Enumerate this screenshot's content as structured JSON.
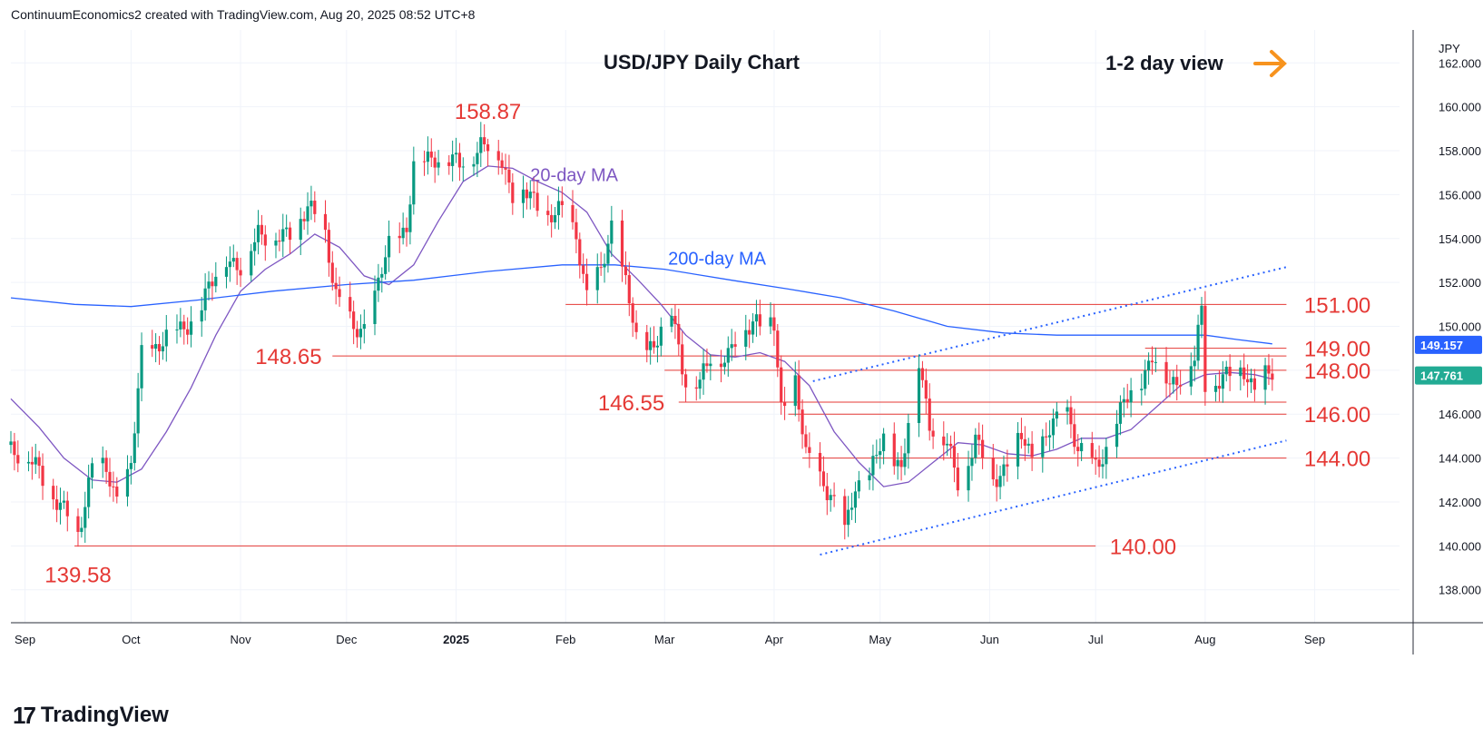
{
  "header": {
    "attribution": "ContinuumEconomics2 created with TradingView.com, Aug 20, 2025 08:52 UTC+8"
  },
  "footer": {
    "logo_mark": "17",
    "logo_text": "TradingView"
  },
  "chart_data": {
    "type": "candlestick",
    "title": "USD/JPY Daily Chart",
    "subtitle": "1-2 day view",
    "currency_label": "JPY",
    "ylim": [
      136.5,
      163.5
    ],
    "y_ticks": [
      "138.000",
      "140.000",
      "142.000",
      "144.000",
      "146.000",
      "148.000",
      "150.000",
      "152.000",
      "154.000",
      "156.000",
      "158.000",
      "160.000",
      "162.000"
    ],
    "x_ticks": [
      {
        "label": "Sep",
        "date": "2024-09-01"
      },
      {
        "label": "Oct",
        "date": "2024-10-01"
      },
      {
        "label": "Nov",
        "date": "2024-11-01"
      },
      {
        "label": "Dec",
        "date": "2024-12-01"
      },
      {
        "label": "2025",
        "date": "2025-01-01"
      },
      {
        "label": "Feb",
        "date": "2025-02-01"
      },
      {
        "label": "Mar",
        "date": "2025-03-01"
      },
      {
        "label": "Apr",
        "date": "2025-04-01"
      },
      {
        "label": "May",
        "date": "2025-05-01"
      },
      {
        "label": "Jun",
        "date": "2025-06-01"
      },
      {
        "label": "Jul",
        "date": "2025-07-01"
      },
      {
        "label": "Aug",
        "date": "2025-08-01"
      },
      {
        "label": "Sep",
        "date": "2025-09-01"
      }
    ],
    "x_range": [
      "2024-08-28",
      "2025-09-25"
    ],
    "price_badges": [
      {
        "label": "149.157",
        "value": 149.157,
        "color": "#2962ff"
      },
      {
        "label": "147.761",
        "value": 147.761,
        "color": "#22ab94"
      }
    ],
    "close_points": [
      [
        "2024-08-28",
        144.6
      ],
      [
        "2024-09-05",
        143.4
      ],
      [
        "2024-09-11",
        141.8
      ],
      [
        "2024-09-16",
        140.5
      ],
      [
        "2024-09-20",
        143.8
      ],
      [
        "2024-09-24",
        143.3
      ],
      [
        "2024-09-27",
        142.2
      ],
      [
        "2024-10-01",
        143.6
      ],
      [
        "2024-10-04",
        148.6
      ],
      [
        "2024-10-09",
        149.3
      ],
      [
        "2024-10-15",
        149.8
      ],
      [
        "2024-10-21",
        150.9
      ],
      [
        "2024-10-25",
        152.3
      ],
      [
        "2024-10-28",
        153.3
      ],
      [
        "2024-11-01",
        152.4
      ],
      [
        "2024-11-06",
        154.5
      ],
      [
        "2024-11-11",
        153.8
      ],
      [
        "2024-11-15",
        154.3
      ],
      [
        "2024-11-20",
        155.4
      ],
      [
        "2024-11-25",
        154.2
      ],
      [
        "2024-11-28",
        151.6
      ],
      [
        "2024-12-03",
        149.7
      ],
      [
        "2024-12-06",
        150.0
      ],
      [
        "2024-12-10",
        151.9
      ],
      [
        "2024-12-13",
        153.6
      ],
      [
        "2024-12-18",
        154.6
      ],
      [
        "2024-12-20",
        157.2
      ],
      [
        "2024-12-26",
        157.8
      ],
      [
        "2025-01-02",
        157.3
      ],
      [
        "2025-01-08",
        158.3
      ],
      [
        "2025-01-10",
        158.1
      ],
      [
        "2025-01-14",
        157.6
      ],
      [
        "2025-01-17",
        156.1
      ],
      [
        "2025-01-22",
        155.9
      ],
      [
        "2025-01-27",
        155.0
      ],
      [
        "2025-01-31",
        155.2
      ],
      [
        "2025-02-04",
        154.3
      ],
      [
        "2025-02-07",
        151.4
      ],
      [
        "2025-02-11",
        152.4
      ],
      [
        "2025-02-14",
        154.7
      ],
      [
        "2025-02-18",
        151.9
      ],
      [
        "2025-02-21",
        149.3
      ],
      [
        "2025-02-26",
        149.2
      ],
      [
        "2025-03-03",
        150.6
      ],
      [
        "2025-03-07",
        147.6
      ],
      [
        "2025-03-11",
        147.3
      ],
      [
        "2025-03-14",
        148.6
      ],
      [
        "2025-03-19",
        148.7
      ],
      [
        "2025-03-24",
        149.9
      ],
      [
        "2025-03-27",
        150.5
      ],
      [
        "2025-04-01",
        149.9
      ],
      [
        "2025-04-03",
        146.2
      ],
      [
        "2025-04-07",
        147.6
      ],
      [
        "2025-04-10",
        144.0
      ],
      [
        "2025-04-14",
        143.2
      ],
      [
        "2025-04-17",
        142.4
      ],
      [
        "2025-04-21",
        140.5
      ],
      [
        "2025-04-24",
        142.8
      ],
      [
        "2025-04-28",
        143.2
      ],
      [
        "2025-05-02",
        144.8
      ],
      [
        "2025-05-07",
        143.6
      ],
      [
        "2025-05-12",
        148.3
      ],
      [
        "2025-05-15",
        145.7
      ],
      [
        "2025-05-20",
        144.5
      ],
      [
        "2025-05-23",
        142.9
      ],
      [
        "2025-05-28",
        144.8
      ],
      [
        "2025-06-02",
        143.0
      ],
      [
        "2025-06-05",
        143.6
      ],
      [
        "2025-06-10",
        144.9
      ],
      [
        "2025-06-13",
        144.1
      ],
      [
        "2025-06-18",
        145.2
      ],
      [
        "2025-06-23",
        146.2
      ],
      [
        "2025-06-26",
        144.5
      ],
      [
        "2025-07-01",
        143.5
      ],
      [
        "2025-07-04",
        144.5
      ],
      [
        "2025-07-09",
        146.4
      ],
      [
        "2025-07-14",
        147.7
      ],
      [
        "2025-07-17",
        148.6
      ],
      [
        "2025-07-22",
        147.4
      ],
      [
        "2025-07-25",
        147.8
      ],
      [
        "2025-07-29",
        148.4
      ],
      [
        "2025-07-31",
        150.7
      ],
      [
        "2025-08-01",
        147.4
      ],
      [
        "2025-08-05",
        147.6
      ],
      [
        "2025-08-08",
        147.7
      ],
      [
        "2025-08-12",
        148.1
      ],
      [
        "2025-08-15",
        147.2
      ],
      [
        "2025-08-19",
        147.8
      ],
      [
        "2025-08-20",
        147.761
      ]
    ],
    "series": [
      {
        "name": "20-day MA",
        "color": "#7e57c2",
        "points": [
          [
            "2024-08-28",
            146.7
          ],
          [
            "2024-09-05",
            145.4
          ],
          [
            "2024-09-12",
            144.0
          ],
          [
            "2024-09-20",
            143.0
          ],
          [
            "2024-09-27",
            142.9
          ],
          [
            "2024-10-04",
            143.5
          ],
          [
            "2024-10-11",
            145.2
          ],
          [
            "2024-10-18",
            147.2
          ],
          [
            "2024-10-25",
            149.6
          ],
          [
            "2024-11-01",
            151.6
          ],
          [
            "2024-11-08",
            152.6
          ],
          [
            "2024-11-15",
            153.3
          ],
          [
            "2024-11-22",
            154.2
          ],
          [
            "2024-11-29",
            153.6
          ],
          [
            "2024-12-06",
            152.3
          ],
          [
            "2024-12-13",
            151.9
          ],
          [
            "2024-12-20",
            152.8
          ],
          [
            "2024-12-27",
            154.8
          ],
          [
            "2025-01-03",
            156.6
          ],
          [
            "2025-01-10",
            157.3
          ],
          [
            "2025-01-17",
            157.2
          ],
          [
            "2025-01-24",
            156.6
          ],
          [
            "2025-01-31",
            156.1
          ],
          [
            "2025-02-07",
            155.2
          ],
          [
            "2025-02-14",
            153.3
          ],
          [
            "2025-02-21",
            152.2
          ],
          [
            "2025-02-28",
            151.0
          ],
          [
            "2025-03-07",
            149.6
          ],
          [
            "2025-03-14",
            148.7
          ],
          [
            "2025-03-21",
            148.6
          ],
          [
            "2025-03-28",
            148.8
          ],
          [
            "2025-04-04",
            148.4
          ],
          [
            "2025-04-11",
            147.3
          ],
          [
            "2025-04-18",
            145.2
          ],
          [
            "2025-04-25",
            143.8
          ],
          [
            "2025-05-02",
            142.7
          ],
          [
            "2025-05-09",
            142.9
          ],
          [
            "2025-05-16",
            143.8
          ],
          [
            "2025-05-23",
            144.7
          ],
          [
            "2025-05-30",
            144.6
          ],
          [
            "2025-06-06",
            144.2
          ],
          [
            "2025-06-13",
            144.1
          ],
          [
            "2025-06-20",
            144.4
          ],
          [
            "2025-06-27",
            144.9
          ],
          [
            "2025-07-04",
            144.9
          ],
          [
            "2025-07-11",
            145.3
          ],
          [
            "2025-07-18",
            146.3
          ],
          [
            "2025-07-25",
            147.3
          ],
          [
            "2025-08-01",
            147.8
          ],
          [
            "2025-08-08",
            147.9
          ],
          [
            "2025-08-15",
            147.8
          ],
          [
            "2025-08-20",
            147.6
          ]
        ]
      },
      {
        "name": "200-day MA",
        "color": "#2962ff",
        "points": [
          [
            "2024-08-28",
            151.3
          ],
          [
            "2024-09-15",
            151.0
          ],
          [
            "2024-10-01",
            150.9
          ],
          [
            "2024-10-20",
            151.2
          ],
          [
            "2024-11-10",
            151.6
          ],
          [
            "2024-12-01",
            151.9
          ],
          [
            "2024-12-20",
            152.1
          ],
          [
            "2025-01-10",
            152.5
          ],
          [
            "2025-01-31",
            152.8
          ],
          [
            "2025-02-15",
            152.8
          ],
          [
            "2025-03-01",
            152.6
          ],
          [
            "2025-03-20",
            152.1
          ],
          [
            "2025-04-05",
            151.7
          ],
          [
            "2025-04-20",
            151.3
          ],
          [
            "2025-05-05",
            150.7
          ],
          [
            "2025-05-20",
            150.0
          ],
          [
            "2025-06-05",
            149.7
          ],
          [
            "2025-06-20",
            149.6
          ],
          [
            "2025-07-05",
            149.6
          ],
          [
            "2025-07-20",
            149.6
          ],
          [
            "2025-08-01",
            149.6
          ],
          [
            "2025-08-10",
            149.4
          ],
          [
            "2025-08-20",
            149.2
          ]
        ]
      }
    ],
    "horizontal_levels": [
      {
        "value": 151.0,
        "label": "151.00",
        "from": "2025-02-01",
        "to": "2025-08-24"
      },
      {
        "value": 149.0,
        "label": "149.00",
        "from": "2025-07-15",
        "to": "2025-08-24"
      },
      {
        "value": 148.65,
        "label": "148.65",
        "from": "2024-11-27",
        "to": "2025-08-24"
      },
      {
        "value": 148.0,
        "label": "148.00",
        "from": "2025-03-01",
        "to": "2025-08-24"
      },
      {
        "value": 146.55,
        "label": "146.55",
        "from": "2025-03-05",
        "to": "2025-08-24"
      },
      {
        "value": 146.0,
        "label": "146.00",
        "from": "2025-04-05",
        "to": "2025-08-24"
      },
      {
        "value": 144.0,
        "label": "144.00",
        "from": "2025-04-09",
        "to": "2025-08-24"
      },
      {
        "value": 140.0,
        "label": "140.00",
        "from": "2024-09-15",
        "to": "2025-07-01"
      }
    ],
    "trend_channel": [
      [
        [
          "2025-04-14",
          139.6
        ],
        [
          "2025-08-24",
          144.8
        ]
      ],
      [
        [
          "2025-04-12",
          147.5
        ],
        [
          "2025-08-24",
          152.7
        ]
      ]
    ],
    "annotations": [
      {
        "text": "158.87",
        "date": "2025-01-10",
        "value": 158.87
      },
      {
        "text": "139.58",
        "date": "2024-09-16",
        "value": 139.58
      },
      {
        "text": "20-day MA",
        "date": "2025-01-22",
        "value": 156.9
      },
      {
        "text": "200-day MA",
        "date": "2025-03-02",
        "value": 153.1
      }
    ],
    "grid": true,
    "legend": "none"
  }
}
